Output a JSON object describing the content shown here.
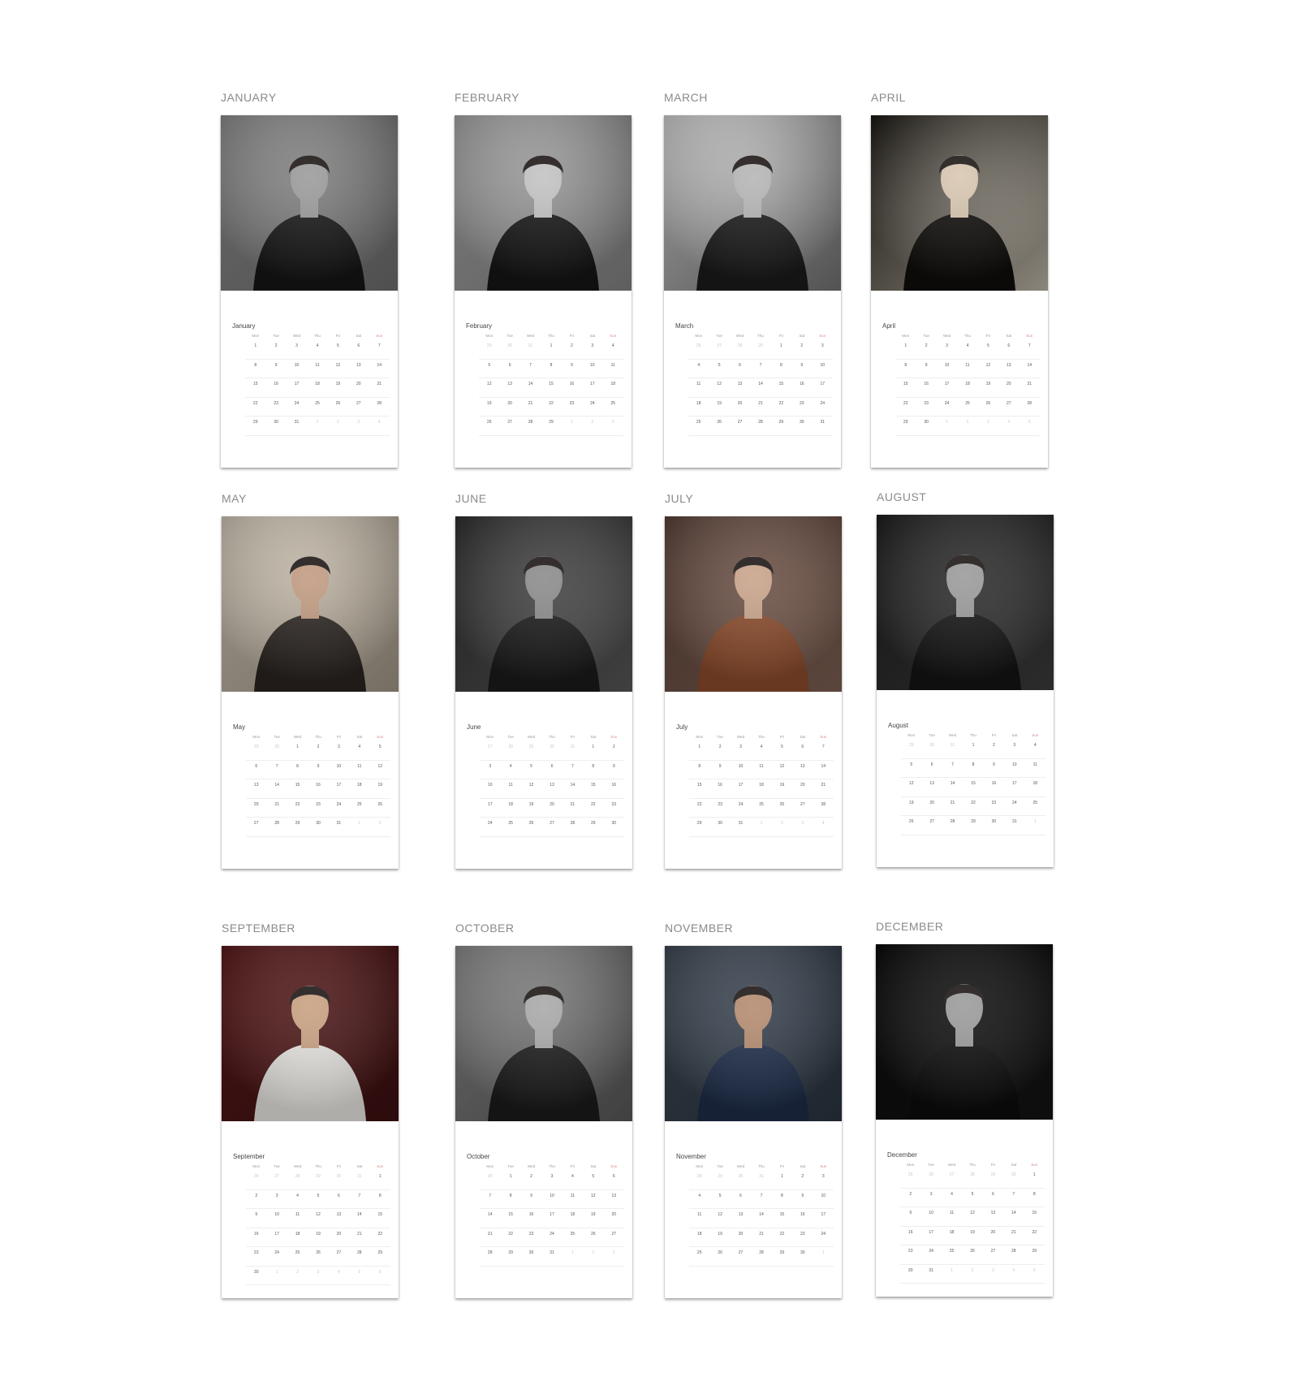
{
  "dow": [
    "Mon",
    "Tue",
    "Wed",
    "Thu",
    "Fri",
    "Sat",
    "Sun"
  ],
  "months": [
    {
      "label": "JANUARY",
      "title": "January",
      "tones": {
        "bg": "#8c8c8c",
        "bg2": "#6a6a6a",
        "body": "#161616",
        "skin": "#9a9a9a"
      },
      "weeks": [
        [
          "1",
          "2",
          "3",
          "4",
          "5",
          "6",
          "7"
        ],
        [
          "8",
          "9",
          "10",
          "11",
          "12",
          "13",
          "14"
        ],
        [
          "15",
          "16",
          "17",
          "18",
          "19",
          "20",
          "21"
        ],
        [
          "22",
          "23",
          "24",
          "25",
          "26",
          "27",
          "28"
        ],
        [
          "29",
          "30",
          "31",
          "1",
          "2",
          "3",
          "4"
        ]
      ],
      "lead": 0,
      "trail": 4
    },
    {
      "label": "FEBRUARY",
      "title": "February",
      "tones": {
        "bg": "#a5a5a5",
        "bg2": "#7e7e7e",
        "body": "#151515",
        "skin": "#c2c2c2"
      },
      "weeks": [
        [
          "29",
          "30",
          "31",
          "1",
          "2",
          "3",
          "4"
        ],
        [
          "5",
          "6",
          "7",
          "8",
          "9",
          "10",
          "11"
        ],
        [
          "12",
          "13",
          "14",
          "15",
          "16",
          "17",
          "18"
        ],
        [
          "19",
          "20",
          "21",
          "22",
          "23",
          "24",
          "25"
        ],
        [
          "26",
          "27",
          "28",
          "29",
          "1",
          "2",
          "3"
        ]
      ],
      "lead": 3,
      "trail": 3
    },
    {
      "label": "MARCH",
      "title": "March",
      "tones": {
        "bg": "#d0d0d0",
        "bg2": "#6e6e6e",
        "body": "#1a1a1a",
        "skin": "#b5b5b5"
      },
      "weeks": [
        [
          "26",
          "27",
          "28",
          "29",
          "1",
          "2",
          "3"
        ],
        [
          "4",
          "5",
          "6",
          "7",
          "8",
          "9",
          "10"
        ],
        [
          "11",
          "12",
          "13",
          "14",
          "15",
          "16",
          "17"
        ],
        [
          "18",
          "19",
          "20",
          "21",
          "22",
          "23",
          "24"
        ],
        [
          "25",
          "26",
          "27",
          "28",
          "29",
          "30",
          "31"
        ]
      ],
      "lead": 4,
      "trail": 0
    },
    {
      "label": "APRIL",
      "title": "April",
      "tones": {
        "bg": "#1a1712",
        "bg2": "#b8b2a4",
        "body": "#0f0d0a",
        "skin": "#d8c6b0"
      },
      "weeks": [
        [
          "1",
          "2",
          "3",
          "4",
          "5",
          "6",
          "7"
        ],
        [
          "8",
          "9",
          "10",
          "11",
          "12",
          "13",
          "14"
        ],
        [
          "15",
          "16",
          "17",
          "18",
          "19",
          "20",
          "21"
        ],
        [
          "22",
          "23",
          "24",
          "25",
          "26",
          "27",
          "28"
        ],
        [
          "29",
          "30",
          "1",
          "2",
          "3",
          "4",
          "5"
        ]
      ],
      "lead": 0,
      "trail": 5
    },
    {
      "label": "MAY",
      "title": "May",
      "tones": {
        "bg": "#cfc6b6",
        "bg2": "#9e9384",
        "body": "#2a2420",
        "skin": "#c19a80"
      },
      "weeks": [
        [
          "29",
          "30",
          "1",
          "2",
          "3",
          "4",
          "5"
        ],
        [
          "6",
          "7",
          "8",
          "9",
          "10",
          "11",
          "12"
        ],
        [
          "13",
          "14",
          "15",
          "16",
          "17",
          "18",
          "19"
        ],
        [
          "20",
          "21",
          "22",
          "23",
          "24",
          "25",
          "26"
        ],
        [
          "27",
          "28",
          "29",
          "30",
          "31",
          "1",
          "2"
        ]
      ],
      "lead": 2,
      "trail": 2
    },
    {
      "label": "JUNE",
      "title": "June",
      "tones": {
        "bg": "#2e2e2e",
        "bg2": "#555555",
        "body": "#1a1a1a",
        "skin": "#8a8a8a"
      },
      "weeks": [
        [
          "27",
          "28",
          "29",
          "30",
          "31",
          "1",
          "2"
        ],
        [
          "3",
          "4",
          "5",
          "6",
          "7",
          "8",
          "9"
        ],
        [
          "10",
          "11",
          "12",
          "13",
          "14",
          "15",
          "16"
        ],
        [
          "17",
          "18",
          "19",
          "20",
          "21",
          "22",
          "23"
        ],
        [
          "24",
          "25",
          "26",
          "27",
          "28",
          "29",
          "30"
        ]
      ],
      "lead": 5,
      "trail": 0
    },
    {
      "label": "JULY",
      "title": "July",
      "tones": {
        "bg": "#5a4238",
        "bg2": "#7a5d50",
        "body": "#8a4a2a",
        "skin": "#c9a38a"
      },
      "weeks": [
        [
          "1",
          "2",
          "3",
          "4",
          "5",
          "6",
          "7"
        ],
        [
          "8",
          "9",
          "10",
          "11",
          "12",
          "13",
          "14"
        ],
        [
          "15",
          "16",
          "17",
          "18",
          "19",
          "20",
          "21"
        ],
        [
          "22",
          "23",
          "24",
          "25",
          "26",
          "27",
          "28"
        ],
        [
          "29",
          "30",
          "31",
          "1",
          "2",
          "3",
          "4"
        ]
      ],
      "lead": 0,
      "trail": 4
    },
    {
      "label": "AUGUST",
      "title": "August",
      "tones": {
        "bg": "#1d1d1d",
        "bg2": "#3a3a3a",
        "body": "#141414",
        "skin": "#9a9a9a"
      },
      "weeks": [
        [
          "29",
          "30",
          "31",
          "1",
          "2",
          "3",
          "4"
        ],
        [
          "5",
          "6",
          "7",
          "8",
          "9",
          "10",
          "11"
        ],
        [
          "12",
          "13",
          "14",
          "15",
          "16",
          "17",
          "18"
        ],
        [
          "19",
          "20",
          "21",
          "22",
          "23",
          "24",
          "25"
        ],
        [
          "26",
          "27",
          "28",
          "29",
          "30",
          "31",
          "1"
        ]
      ],
      "lead": 3,
      "trail": 1
    },
    {
      "label": "SEPTEMBER",
      "title": "September",
      "tones": {
        "bg": "#5a1a1a",
        "bg2": "#3a0f10",
        "body": "#e8e6e2",
        "skin": "#c8a080"
      },
      "weeks": [
        [
          "26",
          "27",
          "28",
          "29",
          "30",
          "31",
          "1"
        ],
        [
          "2",
          "3",
          "4",
          "5",
          "6",
          "7",
          "8"
        ],
        [
          "9",
          "10",
          "11",
          "12",
          "13",
          "14",
          "15"
        ],
        [
          "16",
          "17",
          "18",
          "19",
          "20",
          "21",
          "22"
        ],
        [
          "23",
          "24",
          "25",
          "26",
          "27",
          "28",
          "29"
        ],
        [
          "30",
          "1",
          "2",
          "3",
          "4",
          "5",
          "6"
        ]
      ],
      "lead": 6,
      "trail": 6
    },
    {
      "label": "OCTOBER",
      "title": "October",
      "tones": {
        "bg": "#8a8a8a",
        "bg2": "#555555",
        "body": "#1a1a1a",
        "skin": "#a8a8a8"
      },
      "weeks": [
        [
          "30",
          "1",
          "2",
          "3",
          "4",
          "5",
          "6"
        ],
        [
          "7",
          "8",
          "9",
          "10",
          "11",
          "12",
          "13"
        ],
        [
          "14",
          "15",
          "16",
          "17",
          "18",
          "19",
          "20"
        ],
        [
          "21",
          "22",
          "23",
          "24",
          "25",
          "26",
          "27"
        ],
        [
          "28",
          "29",
          "30",
          "31",
          "1",
          "2",
          "3"
        ]
      ],
      "lead": 1,
      "trail": 3
    },
    {
      "label": "NOVEMBER",
      "title": "November",
      "tones": {
        "bg": "#3e4854",
        "bg2": "#2a3340",
        "body": "#1d2c48",
        "skin": "#b48a6e"
      },
      "weeks": [
        [
          "28",
          "29",
          "30",
          "31",
          "1",
          "2",
          "3"
        ],
        [
          "4",
          "5",
          "6",
          "7",
          "8",
          "9",
          "10"
        ],
        [
          "11",
          "12",
          "13",
          "14",
          "15",
          "16",
          "17"
        ],
        [
          "18",
          "19",
          "20",
          "21",
          "22",
          "23",
          "24"
        ],
        [
          "25",
          "26",
          "27",
          "28",
          "29",
          "30",
          "1"
        ]
      ],
      "lead": 4,
      "trail": 1
    },
    {
      "label": "DECEMBER",
      "title": "December",
      "tones": {
        "bg": "#0a0a0a",
        "bg2": "#141414",
        "body": "#0c0c0c",
        "skin": "#9a9a9a"
      },
      "weeks": [
        [
          "25",
          "26",
          "27",
          "28",
          "29",
          "30",
          "1"
        ],
        [
          "2",
          "3",
          "4",
          "5",
          "6",
          "7",
          "8"
        ],
        [
          "9",
          "10",
          "11",
          "12",
          "13",
          "14",
          "15"
        ],
        [
          "16",
          "17",
          "18",
          "19",
          "20",
          "21",
          "22"
        ],
        [
          "23",
          "24",
          "25",
          "26",
          "27",
          "28",
          "29"
        ],
        [
          "30",
          "31",
          "1",
          "2",
          "3",
          "4",
          "5"
        ]
      ],
      "lead": 6,
      "trail": 5
    }
  ]
}
